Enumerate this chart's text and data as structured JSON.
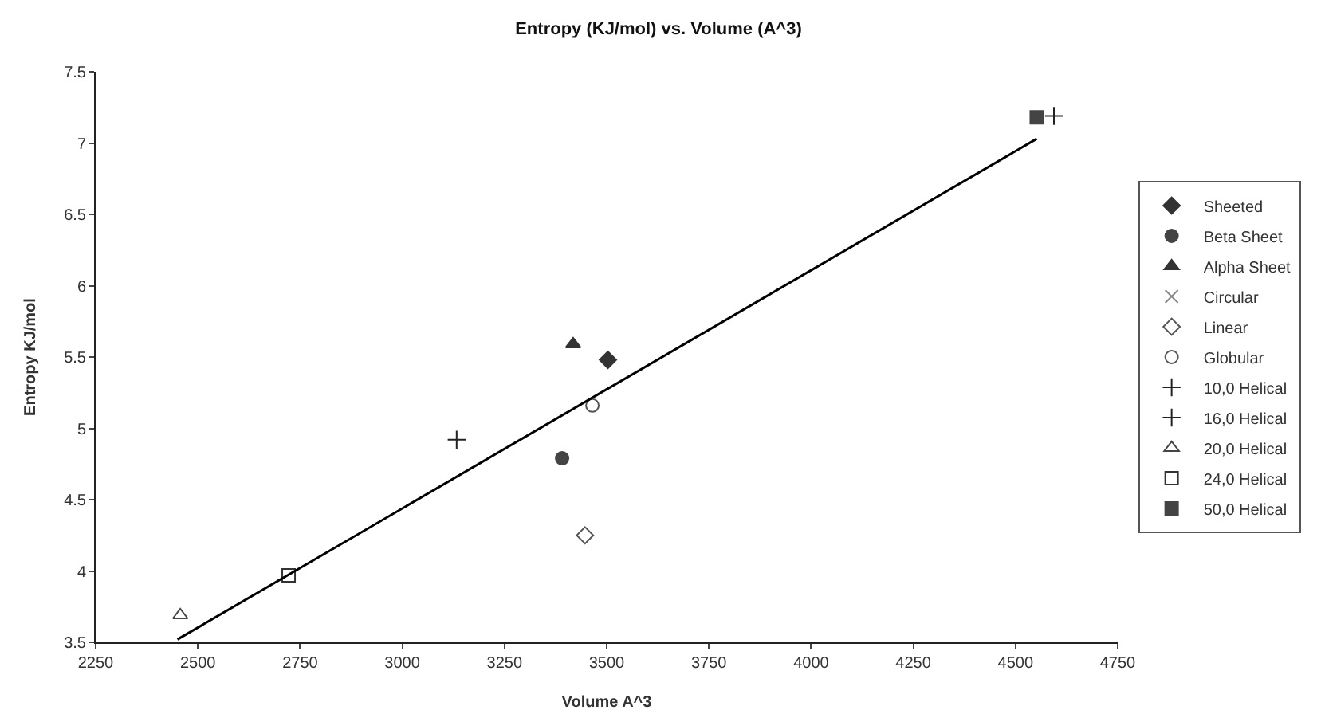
{
  "chart_data": {
    "type": "scatter",
    "title": "Entropy (KJ/mol) vs. Volume (A^3)",
    "xlabel": "Volume A^3",
    "ylabel": "Entropy KJ/mol",
    "xlim": [
      2250,
      4750
    ],
    "xticks": [
      2250,
      2500,
      2750,
      3000,
      3250,
      3500,
      3750,
      4000,
      4250,
      4500,
      4750
    ],
    "ylim": [
      3.5,
      7.5
    ],
    "yticks": [
      3.5,
      4,
      4.5,
      5,
      5.5,
      6,
      6.5,
      7,
      7.5
    ],
    "legend": "right",
    "series": [
      {
        "name": "Sheeted",
        "color": "#333333",
        "marker": "diamond",
        "x": [
          3503
        ],
        "values": [
          5.48
        ]
      },
      {
        "name": "Beta Sheet",
        "color": "#444444",
        "marker": "circle",
        "x": [
          3391
        ],
        "values": [
          4.79
        ]
      },
      {
        "name": "Alpha Sheet",
        "color": "#333333",
        "marker": "triangle",
        "x": [
          3418
        ],
        "values": [
          5.59
        ]
      },
      {
        "name": "Circular",
        "color": "#888888",
        "marker": "x-thin-open",
        "x": [
          null
        ],
        "values": [
          null
        ]
      },
      {
        "name": "Linear",
        "color": "#555555",
        "marker": "diamond-open",
        "x": [
          3447
        ],
        "values": [
          4.25
        ]
      },
      {
        "name": "Globular",
        "color": "#555555",
        "marker": "circle-open",
        "x": [
          3465
        ],
        "values": [
          5.16
        ]
      },
      {
        "name": "10,0 Helical",
        "color": "#222222",
        "marker": "cross-thin-open",
        "x": [
          3133
        ],
        "values": [
          4.92
        ]
      },
      {
        "name": "16,0 Helical",
        "color": "#222222",
        "marker": "cross",
        "x": [
          4594
        ],
        "values": [
          7.19
        ]
      },
      {
        "name": "20,0 Helical",
        "color": "#444444",
        "marker": "triangle-open",
        "x": [
          2457
        ],
        "values": [
          3.69
        ]
      },
      {
        "name": "24,0 Helical",
        "color": "#333333",
        "marker": "square-open",
        "x": [
          2722
        ],
        "values": [
          3.97
        ]
      },
      {
        "name": "50,0 Helical",
        "color": "#444444",
        "marker": "square",
        "x": [
          4552
        ],
        "values": [
          7.18
        ]
      },
      {
        "type": "line",
        "color": "#000000",
        "marker": "none",
        "x": [
          2450,
          4552
        ],
        "values": [
          3.52,
          7.03
        ]
      }
    ]
  }
}
